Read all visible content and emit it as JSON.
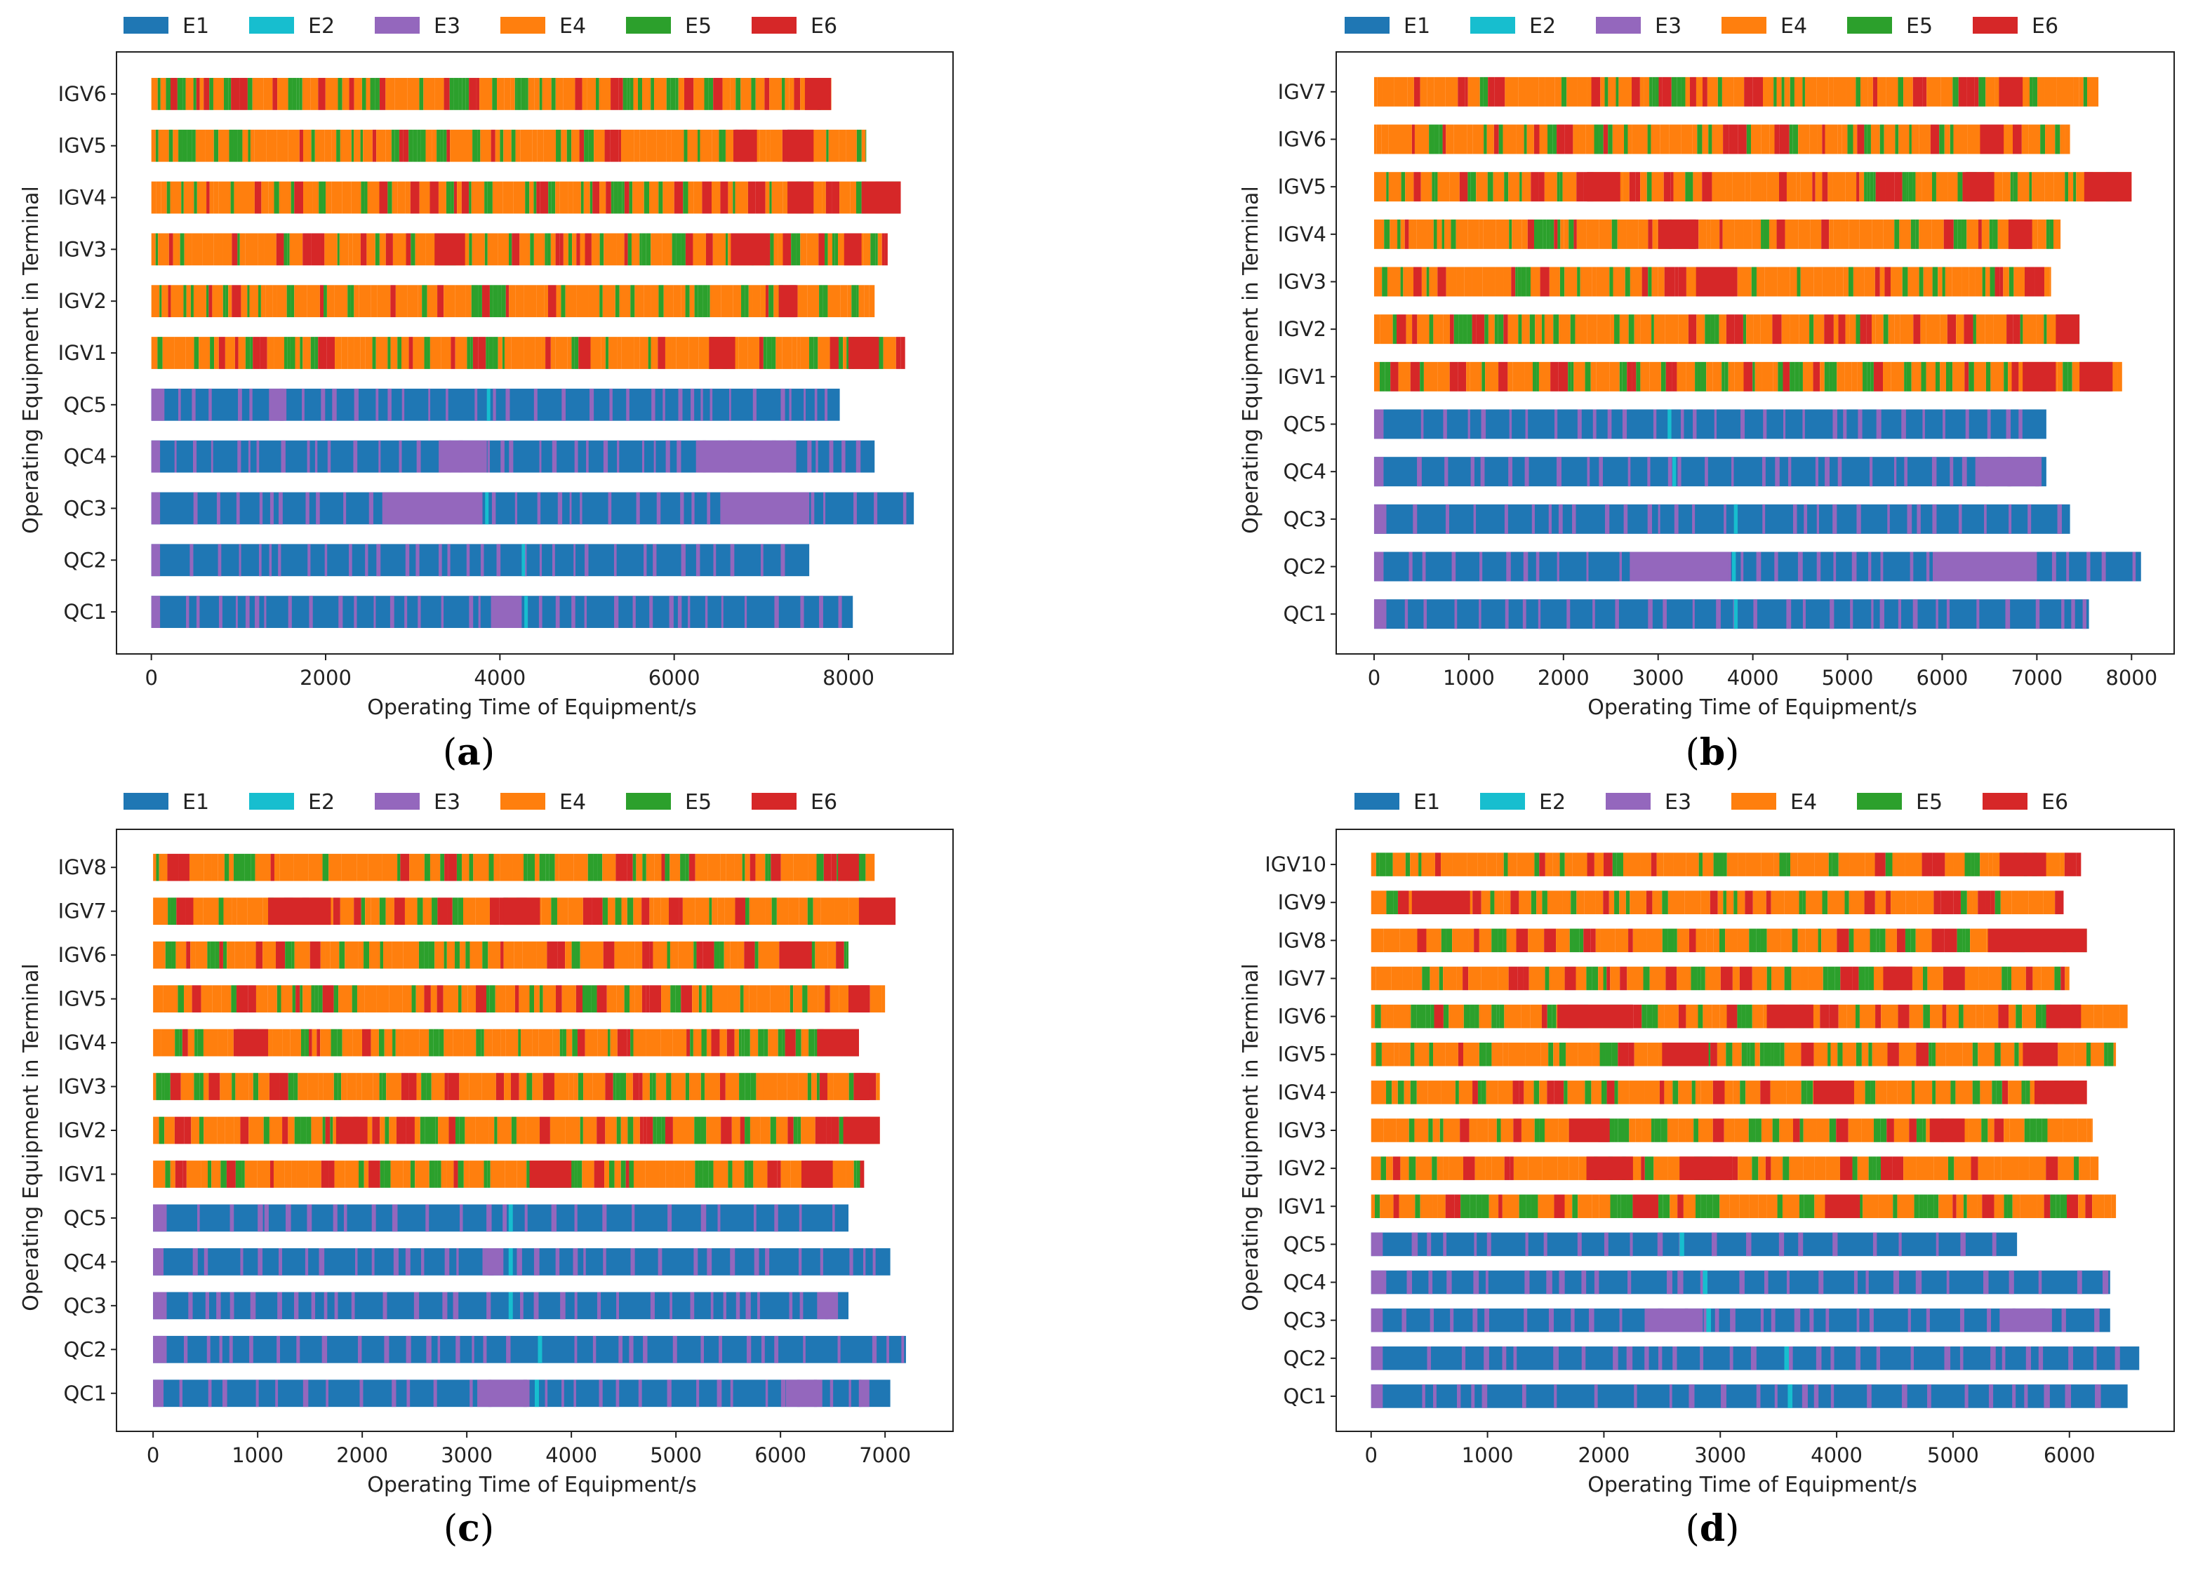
{
  "legend": [
    {
      "code": "E1",
      "color": "#1f77b4"
    },
    {
      "code": "E2",
      "color": "#17becf"
    },
    {
      "code": "E3",
      "color": "#9467bd"
    },
    {
      "code": "E4",
      "color": "#ff7f0e"
    },
    {
      "code": "E5",
      "color": "#2ca02c"
    },
    {
      "code": "E6",
      "color": "#d62728"
    }
  ],
  "xlabel": "Operating Time of Equipment/s",
  "ylabel": "Operating Equipment in Terminal",
  "chart_data": [
    {
      "type": "gantt",
      "panel": "a",
      "caption_open": "(",
      "caption_letter": "a",
      "caption_close": ")",
      "xlabel": "Operating Time of Equipment/s",
      "ylabel": "Operating Equipment in Terminal",
      "xlim": [
        -400,
        9200
      ],
      "xticks": [
        0,
        2000,
        4000,
        6000,
        8000
      ],
      "xtick_labels": [
        "0",
        "2000",
        "4000",
        "6000",
        "8000"
      ],
      "legend": [
        "E1",
        "E2",
        "E3",
        "E4",
        "E5",
        "E6"
      ],
      "rows": [
        {
          "name": "IGV6",
          "kind": "IGV",
          "end": 7800,
          "seed": 11,
          "red": [
            [
              7500,
              7800
            ]
          ]
        },
        {
          "name": "IGV5",
          "kind": "IGV",
          "end": 8200,
          "seed": 12,
          "red": [
            [
              6700,
              6950
            ],
            [
              7300,
              7600
            ]
          ]
        },
        {
          "name": "IGV4",
          "kind": "IGV",
          "end": 8600,
          "seed": 13,
          "red": [
            [
              7300,
              7600
            ],
            [
              8150,
              8600
            ]
          ]
        },
        {
          "name": "IGV3",
          "kind": "IGV",
          "end": 8450,
          "seed": 14,
          "red": [
            [
              3250,
              3600
            ],
            [
              6650,
              7100
            ],
            [
              7950,
              8150
            ]
          ]
        },
        {
          "name": "IGV2",
          "kind": "IGV",
          "end": 8300,
          "seed": 15,
          "red": [
            [
              7200,
              7400
            ]
          ]
        },
        {
          "name": "IGV1",
          "kind": "IGV",
          "end": 8650,
          "seed": 16,
          "red": [
            [
              6400,
              6700
            ],
            [
              8000,
              8350
            ]
          ]
        },
        {
          "name": "QC5",
          "kind": "QC",
          "end": 7900,
          "seed": 21,
          "e3": [
            [
              0,
              150
            ],
            [
              1350,
              1550
            ]
          ],
          "e2": [
            3850
          ]
        },
        {
          "name": "QC4",
          "kind": "QC",
          "end": 8300,
          "seed": 22,
          "e3": [
            [
              0,
              100
            ],
            [
              3300,
              3850
            ],
            [
              6250,
              7400
            ]
          ],
          "e2": []
        },
        {
          "name": "QC3",
          "kind": "QC",
          "end": 8750,
          "seed": 23,
          "e3": [
            [
              0,
              100
            ],
            [
              2650,
              3800
            ],
            [
              6550,
              7550
            ]
          ],
          "e2": [
            3830
          ]
        },
        {
          "name": "QC2",
          "kind": "QC",
          "end": 7550,
          "seed": 24,
          "e3": [
            [
              0,
              100
            ]
          ],
          "e2": [
            4250
          ]
        },
        {
          "name": "QC1",
          "kind": "QC",
          "end": 8050,
          "seed": 25,
          "e3": [
            [
              0,
              100
            ],
            [
              3900,
              4250
            ]
          ],
          "e2": [
            4280
          ]
        }
      ]
    },
    {
      "type": "gantt",
      "panel": "b",
      "caption_open": "(",
      "caption_letter": "b",
      "caption_close": ")",
      "xlabel": "Operating Time of Equipment/s",
      "ylabel": "Operating Equipment in Terminal",
      "xlim": [
        -400,
        8450
      ],
      "xticks": [
        0,
        1000,
        2000,
        3000,
        4000,
        5000,
        6000,
        7000,
        8000
      ],
      "xtick_labels": [
        "0",
        "1000",
        "2000",
        "3000",
        "4000",
        "5000",
        "6000",
        "7000",
        "8000"
      ],
      "legend": [
        "E1",
        "E2",
        "E3",
        "E4",
        "E5",
        "E6"
      ],
      "rows": [
        {
          "name": "IGV7",
          "kind": "IGV",
          "end": 7650,
          "seed": 31,
          "red": [
            [
              6600,
              6850
            ]
          ]
        },
        {
          "name": "IGV6",
          "kind": "IGV",
          "end": 7350,
          "seed": 32,
          "red": [
            [
              6400,
              6650
            ]
          ]
        },
        {
          "name": "IGV5",
          "kind": "IGV",
          "end": 8000,
          "seed": 33,
          "red": [
            [
              2250,
              2600
            ],
            [
              6250,
              6550
            ],
            [
              7500,
              8000
            ]
          ]
        },
        {
          "name": "IGV4",
          "kind": "IGV",
          "end": 7250,
          "seed": 34,
          "red": [
            [
              3000,
              3400
            ],
            [
              6700,
              6950
            ]
          ]
        },
        {
          "name": "IGV3",
          "kind": "IGV",
          "end": 7150,
          "seed": 35,
          "red": [
            [
              3400,
              3800
            ]
          ]
        },
        {
          "name": "IGV2",
          "kind": "IGV",
          "end": 7450,
          "seed": 36,
          "red": [
            [
              7200,
              7450
            ]
          ]
        },
        {
          "name": "IGV1",
          "kind": "IGV",
          "end": 7900,
          "seed": 37,
          "red": [
            [
              6850,
              7200
            ],
            [
              7450,
              7800
            ]
          ]
        },
        {
          "name": "QC5",
          "kind": "QC",
          "end": 7100,
          "seed": 41,
          "e3": [
            [
              0,
              100
            ]
          ],
          "e2": [
            3100
          ]
        },
        {
          "name": "QC4",
          "kind": "QC",
          "end": 7100,
          "seed": 42,
          "e3": [
            [
              0,
              100
            ],
            [
              6350,
              7050
            ]
          ],
          "e2": [
            3150
          ]
        },
        {
          "name": "QC3",
          "kind": "QC",
          "end": 7350,
          "seed": 43,
          "e3": [
            [
              0,
              130
            ]
          ],
          "e2": [
            3800
          ]
        },
        {
          "name": "QC2",
          "kind": "QC",
          "end": 8100,
          "seed": 44,
          "e3": [
            [
              0,
              100
            ],
            [
              2700,
              3750
            ],
            [
              5900,
              7000
            ]
          ],
          "e2": [
            3780
          ]
        },
        {
          "name": "QC1",
          "kind": "QC",
          "end": 7550,
          "seed": 45,
          "e3": [
            [
              0,
              130
            ]
          ],
          "e2": [
            3800
          ]
        }
      ]
    },
    {
      "type": "gantt",
      "panel": "c",
      "caption_open": "(",
      "caption_letter": "c",
      "caption_close": ")",
      "xlabel": "Operating Time of Equipment/s",
      "ylabel": "Operating Equipment in Terminal",
      "xlim": [
        -350,
        7650
      ],
      "xticks": [
        0,
        1000,
        2000,
        3000,
        4000,
        5000,
        6000,
        7000
      ],
      "xtick_labels": [
        "0",
        "1000",
        "2000",
        "3000",
        "4000",
        "5000",
        "6000",
        "7000"
      ],
      "legend": [
        "E1",
        "E2",
        "E3",
        "E4",
        "E5",
        "E6"
      ],
      "rows": [
        {
          "name": "IGV8",
          "kind": "IGV",
          "end": 6900,
          "seed": 51,
          "red": [
            [
              6550,
              6750
            ]
          ]
        },
        {
          "name": "IGV7",
          "kind": "IGV",
          "end": 7100,
          "seed": 52,
          "red": [
            [
              1100,
              1700
            ],
            [
              3350,
              3700
            ],
            [
              6750,
              7100
            ]
          ]
        },
        {
          "name": "IGV6",
          "kind": "IGV",
          "end": 6650,
          "seed": 53,
          "red": [
            [
              6000,
              6300
            ]
          ]
        },
        {
          "name": "IGV5",
          "kind": "IGV",
          "end": 7000,
          "seed": 54,
          "red": [
            [
              6650,
              6850
            ]
          ]
        },
        {
          "name": "IGV4",
          "kind": "IGV",
          "end": 6750,
          "seed": 55,
          "red": [
            [
              800,
              1100
            ],
            [
              6350,
              6750
            ]
          ]
        },
        {
          "name": "IGV3",
          "kind": "IGV",
          "end": 6950,
          "seed": 56,
          "red": [
            [
              6700,
              6850
            ]
          ]
        },
        {
          "name": "IGV2",
          "kind": "IGV",
          "end": 6950,
          "seed": 57,
          "red": [
            [
              1750,
              2050
            ],
            [
              6600,
              6950
            ]
          ]
        },
        {
          "name": "IGV1",
          "kind": "IGV",
          "end": 6800,
          "seed": 58,
          "red": [
            [
              3600,
              4000
            ],
            [
              6200,
              6500
            ]
          ]
        },
        {
          "name": "QC5",
          "kind": "QC",
          "end": 6650,
          "seed": 61,
          "e3": [
            [
              0,
              130
            ],
            [
              1000,
              1050
            ]
          ],
          "e2": [
            3400
          ]
        },
        {
          "name": "QC4",
          "kind": "QC",
          "end": 7050,
          "seed": 62,
          "e3": [
            [
              0,
              100
            ],
            [
              3150,
              3350
            ]
          ],
          "e2": [
            3400
          ]
        },
        {
          "name": "QC3",
          "kind": "QC",
          "end": 6650,
          "seed": 63,
          "e3": [
            [
              0,
              130
            ],
            [
              6350,
              6550
            ]
          ],
          "e2": [
            3400
          ]
        },
        {
          "name": "QC2",
          "kind": "QC",
          "end": 7200,
          "seed": 64,
          "e3": [
            [
              0,
              130
            ]
          ],
          "e2": [
            3680
          ]
        },
        {
          "name": "QC1",
          "kind": "QC",
          "end": 7050,
          "seed": 65,
          "e3": [
            [
              0,
              100
            ],
            [
              3100,
              3600
            ],
            [
              6050,
              6400
            ],
            [
              6750,
              6850
            ]
          ],
          "e2": [
            3650
          ]
        }
      ]
    },
    {
      "type": "gantt",
      "panel": "d",
      "caption_open": "(",
      "caption_letter": "d",
      "caption_close": ")",
      "xlabel": "Operating Time of Equipment/s",
      "ylabel": "Operating Equipment in Terminal",
      "xlim": [
        -300,
        6900
      ],
      "xticks": [
        0,
        1000,
        2000,
        3000,
        4000,
        5000,
        6000
      ],
      "xtick_labels": [
        "0",
        "1000",
        "2000",
        "3000",
        "4000",
        "5000",
        "6000"
      ],
      "legend": [
        "E1",
        "E2",
        "E3",
        "E4",
        "E5",
        "E6"
      ],
      "rows": [
        {
          "name": "IGV10",
          "kind": "IGV",
          "end": 6100,
          "seed": 71,
          "red": [
            [
              5400,
              5800
            ]
          ]
        },
        {
          "name": "IGV9",
          "kind": "IGV",
          "end": 5950,
          "seed": 72,
          "red": [
            [
              350,
              850
            ]
          ]
        },
        {
          "name": "IGV8",
          "kind": "IGV",
          "end": 6150,
          "seed": 73,
          "red": [
            [
              5300,
              6150
            ]
          ]
        },
        {
          "name": "IGV7",
          "kind": "IGV",
          "end": 6000,
          "seed": 74,
          "red": [
            [
              4400,
              4650
            ]
          ]
        },
        {
          "name": "IGV6",
          "kind": "IGV",
          "end": 6500,
          "seed": 75,
          "red": [
            [
              1600,
              2250
            ],
            [
              3400,
              3800
            ],
            [
              5800,
              6100
            ]
          ]
        },
        {
          "name": "IGV5",
          "kind": "IGV",
          "end": 6400,
          "seed": 76,
          "red": [
            [
              2500,
              2900
            ],
            [
              5600,
              5900
            ]
          ]
        },
        {
          "name": "IGV4",
          "kind": "IGV",
          "end": 6150,
          "seed": 77,
          "red": [
            [
              3800,
              4150
            ],
            [
              5700,
              6150
            ]
          ]
        },
        {
          "name": "IGV3",
          "kind": "IGV",
          "end": 6200,
          "seed": 78,
          "red": [
            [
              1700,
              2050
            ],
            [
              4800,
              5100
            ]
          ]
        },
        {
          "name": "IGV2",
          "kind": "IGV",
          "end": 6250,
          "seed": 79,
          "red": [
            [
              1850,
              2250
            ],
            [
              2650,
              3100
            ]
          ]
        },
        {
          "name": "IGV1",
          "kind": "IGV",
          "end": 6400,
          "seed": 80,
          "red": [
            [
              3900,
              4200
            ]
          ]
        },
        {
          "name": "QC5",
          "kind": "QC",
          "end": 5550,
          "seed": 81,
          "e3": [
            [
              0,
              100
            ]
          ],
          "e2": [
            2650
          ]
        },
        {
          "name": "QC4",
          "kind": "QC",
          "end": 6350,
          "seed": 82,
          "e3": [
            [
              0,
              130
            ]
          ],
          "e2": [
            2850
          ]
        },
        {
          "name": "QC3",
          "kind": "QC",
          "end": 6350,
          "seed": 83,
          "e3": [
            [
              0,
              100
            ],
            [
              2350,
              2850
            ],
            [
              5400,
              5850
            ]
          ],
          "e2": [
            2880
          ]
        },
        {
          "name": "QC2",
          "kind": "QC",
          "end": 6600,
          "seed": 84,
          "e3": [
            [
              0,
              100
            ]
          ],
          "e2": [
            3550
          ]
        },
        {
          "name": "QC1",
          "kind": "QC",
          "end": 6500,
          "seed": 85,
          "e3": [
            [
              0,
              100
            ]
          ],
          "e2": [
            3580
          ]
        }
      ]
    }
  ]
}
